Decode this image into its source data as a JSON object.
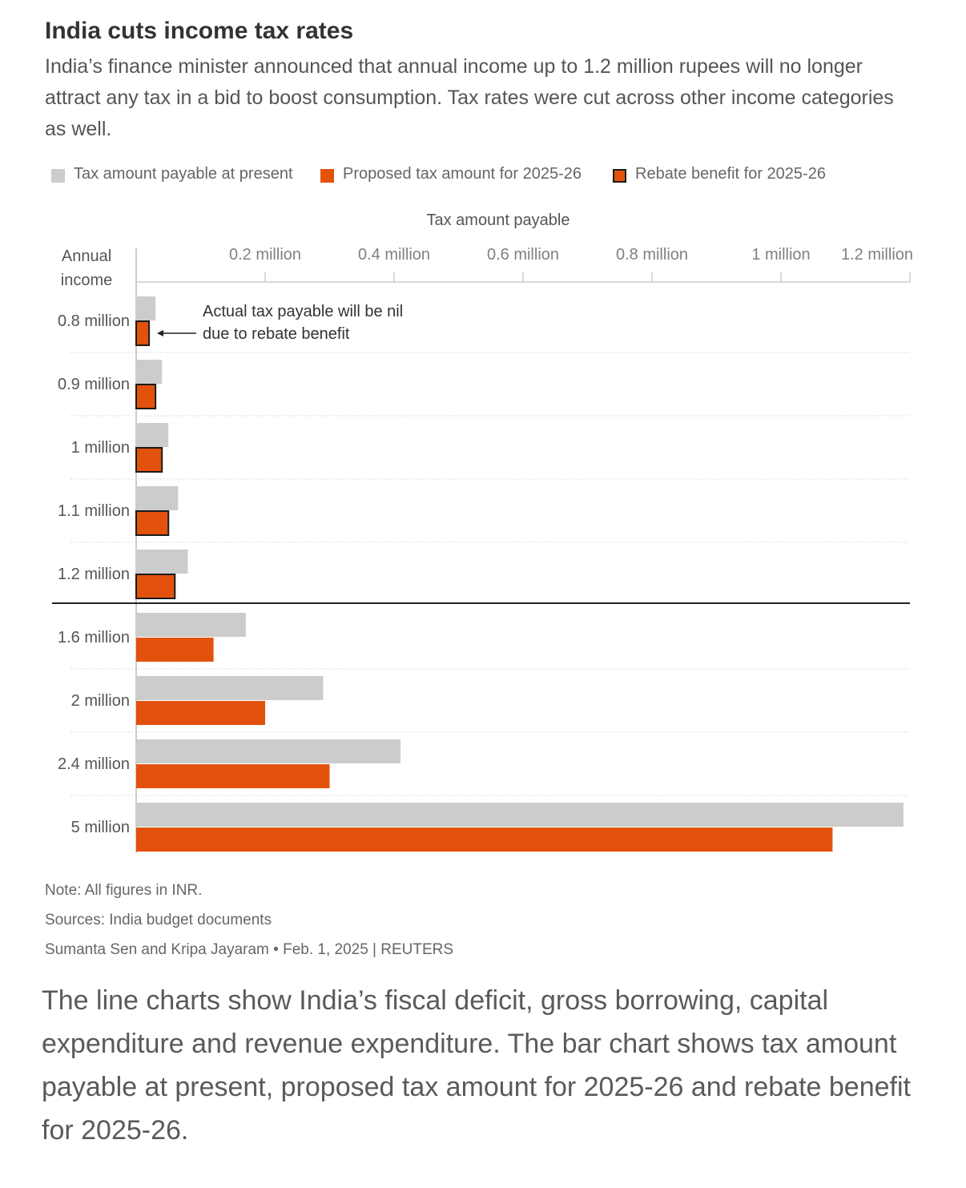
{
  "title": "India cuts income tax rates",
  "subtitle": "India’s finance minister announced that annual income up to 1.2 million rupees will no longer attract any tax in a bid to boost consumption. Tax rates were cut across other income categories as well.",
  "colors": {
    "present": "#cccccc",
    "proposed": "#e2520c",
    "rebate_border": "#1a1a1a",
    "grid": "#dddddd",
    "axis": "#cccccc"
  },
  "legend": [
    {
      "label": "Tax amount payable at present",
      "key": "present"
    },
    {
      "label": "Proposed tax amount for 2025-26",
      "key": "proposed"
    },
    {
      "label": "Rebate benefit for 2025-26",
      "key": "rebate"
    }
  ],
  "chart_data": {
    "type": "bar",
    "orientation": "horizontal",
    "xlabel": "Tax amount payable",
    "ylabel": "Annual income",
    "xlim": [
      0,
      1.2
    ],
    "x_ticks": [
      {
        "value": 0.2,
        "label": "0.2 million"
      },
      {
        "value": 0.4,
        "label": "0.4 million"
      },
      {
        "value": 0.6,
        "label": "0.6 million"
      },
      {
        "value": 0.8,
        "label": "0.8 million"
      },
      {
        "value": 1.0,
        "label": "1 million"
      },
      {
        "value": 1.2,
        "label": "1.2 million"
      }
    ],
    "categories": [
      "0.8 million",
      "0.9 million",
      "1 million",
      "1.1 million",
      "1.2 million",
      "1.6 million",
      "2 million",
      "2.4 million",
      "5 million"
    ],
    "series": [
      {
        "name": "Tax amount payable at present",
        "values": [
          0.03,
          0.04,
          0.05,
          0.065,
          0.08,
          0.17,
          0.29,
          0.41,
          1.19
        ]
      },
      {
        "name": "Proposed tax amount for 2025-26",
        "values": [
          0.02,
          0.03,
          0.04,
          0.05,
          0.06,
          0.12,
          0.2,
          0.3,
          1.08
        ]
      }
    ],
    "rebate_categories": [
      "0.8 million",
      "0.9 million",
      "1 million",
      "1.1 million",
      "1.2 million"
    ],
    "annotation": {
      "line1": "Actual tax payable will be nil",
      "line2": "due to rebate benefit"
    },
    "separator_after": "1.2 million"
  },
  "footer": {
    "note": "Note: All figures in INR.",
    "sources": "Sources: India budget documents",
    "credit": "Sumanta Sen and Kripa Jayaram • Feb. 1, 2025 | REUTERS"
  },
  "caption": "The line charts show India’s fiscal deficit, gross borrowing, capital expenditure and revenue expenditure. The bar chart shows tax amount payable at present, proposed tax amount for 2025-26 and rebate benefit for 2025-26."
}
